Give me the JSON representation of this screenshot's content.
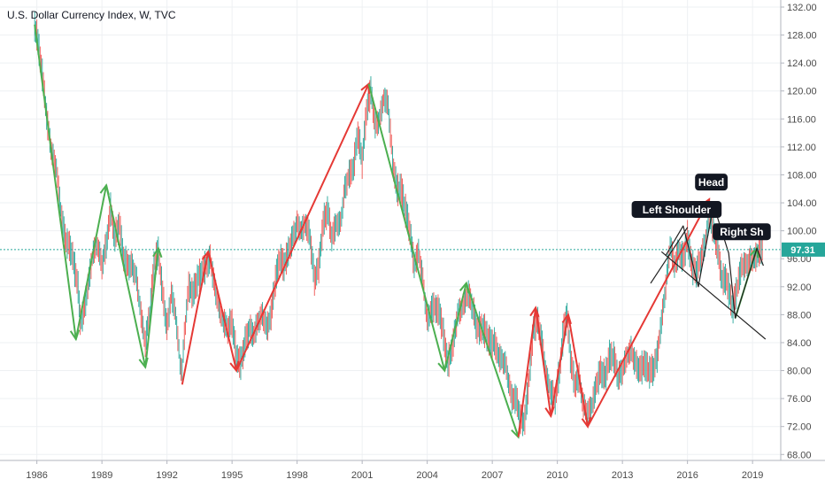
{
  "chart_data": {
    "type": "line",
    "title": "U.S. Dollar Currency Index, W, TVC",
    "x_tick_labels": [
      "1986",
      "1989",
      "1992",
      "1995",
      "1998",
      "2001",
      "2004",
      "2007",
      "2010",
      "2013",
      "2016",
      "2019"
    ],
    "y_tick_labels": [
      "68.00",
      "72.00",
      "76.00",
      "80.00",
      "84.00",
      "88.00",
      "92.00",
      "96.00",
      "100.00",
      "104.00",
      "108.00",
      "112.00",
      "116.00",
      "120.00",
      "124.00",
      "128.00",
      "132.00"
    ],
    "xlim": [
      1984.3,
      2019.6
    ],
    "ylim": [
      67.0,
      133.0
    ],
    "last_price": 97.31,
    "last_price_label": "97.31",
    "grid": true,
    "series": [
      {
        "values": [
          [
            1985.9,
            129.5
          ],
          [
            1986.1,
            126
          ],
          [
            1986.3,
            121
          ],
          [
            1986.5,
            115
          ],
          [
            1986.7,
            111
          ],
          [
            1986.9,
            109
          ],
          [
            1987.1,
            103
          ],
          [
            1987.3,
            99
          ],
          [
            1987.6,
            97
          ],
          [
            1987.9,
            92
          ],
          [
            1988.0,
            87
          ],
          [
            1988.2,
            89
          ],
          [
            1988.4,
            93
          ],
          [
            1988.6,
            97
          ],
          [
            1988.8,
            98
          ],
          [
            1989.0,
            95
          ],
          [
            1989.2,
            98
          ],
          [
            1989.4,
            103
          ],
          [
            1989.6,
            99
          ],
          [
            1989.8,
            101
          ],
          [
            1990.0,
            96
          ],
          [
            1990.2,
            95
          ],
          [
            1990.4,
            95
          ],
          [
            1990.6,
            93
          ],
          [
            1990.8,
            88
          ],
          [
            1991.0,
            84
          ],
          [
            1991.2,
            88
          ],
          [
            1991.4,
            95
          ],
          [
            1991.6,
            97
          ],
          [
            1991.8,
            91
          ],
          [
            1992.0,
            86
          ],
          [
            1992.2,
            91
          ],
          [
            1992.4,
            88
          ],
          [
            1992.6,
            81
          ],
          [
            1992.7,
            80
          ],
          [
            1992.8,
            85
          ],
          [
            1993.0,
            92
          ],
          [
            1993.2,
            91
          ],
          [
            1993.4,
            93
          ],
          [
            1993.6,
            94
          ],
          [
            1993.8,
            95
          ],
          [
            1994.0,
            96
          ],
          [
            1994.2,
            92
          ],
          [
            1994.4,
            89
          ],
          [
            1994.6,
            87
          ],
          [
            1994.8,
            86
          ],
          [
            1995.0,
            87
          ],
          [
            1995.2,
            82
          ],
          [
            1995.4,
            81
          ],
          [
            1995.6,
            84
          ],
          [
            1995.8,
            86
          ],
          [
            1996.0,
            85
          ],
          [
            1996.2,
            87
          ],
          [
            1996.4,
            88
          ],
          [
            1996.6,
            86
          ],
          [
            1996.8,
            88
          ],
          [
            1997.0,
            93
          ],
          [
            1997.2,
            96
          ],
          [
            1997.4,
            95
          ],
          [
            1997.6,
            97
          ],
          [
            1997.8,
            99
          ],
          [
            1998.0,
            101
          ],
          [
            1998.2,
            100
          ],
          [
            1998.4,
            101
          ],
          [
            1998.6,
            99
          ],
          [
            1998.8,
            93
          ],
          [
            1999.0,
            95
          ],
          [
            1999.2,
            101
          ],
          [
            1999.4,
            103
          ],
          [
            1999.6,
            99
          ],
          [
            1999.8,
            101
          ],
          [
            2000.0,
            101
          ],
          [
            2000.2,
            106
          ],
          [
            2000.4,
            108
          ],
          [
            2000.6,
            109
          ],
          [
            2000.8,
            114
          ],
          [
            2001.0,
            110
          ],
          [
            2001.2,
            117
          ],
          [
            2001.4,
            120
          ],
          [
            2001.6,
            115
          ],
          [
            2001.8,
            116
          ],
          [
            2002.0,
            119
          ],
          [
            2002.2,
            118
          ],
          [
            2002.4,
            110
          ],
          [
            2002.6,
            106
          ],
          [
            2002.8,
            106
          ],
          [
            2003.0,
            103
          ],
          [
            2003.2,
            100
          ],
          [
            2003.4,
            95
          ],
          [
            2003.6,
            97
          ],
          [
            2003.8,
            93
          ],
          [
            2004.0,
            87
          ],
          [
            2004.2,
            89
          ],
          [
            2004.4,
            89
          ],
          [
            2004.6,
            88
          ],
          [
            2004.8,
            84
          ],
          [
            2004.95,
            81
          ],
          [
            2005.2,
            84
          ],
          [
            2005.4,
            88
          ],
          [
            2005.6,
            89
          ],
          [
            2005.9,
            91
          ],
          [
            2006.1,
            89
          ],
          [
            2006.3,
            86
          ],
          [
            2006.6,
            86
          ],
          [
            2006.9,
            84
          ],
          [
            2007.1,
            84
          ],
          [
            2007.3,
            82
          ],
          [
            2007.6,
            81
          ],
          [
            2007.9,
            76
          ],
          [
            2008.1,
            76
          ],
          [
            2008.3,
            73
          ],
          [
            2008.5,
            73
          ],
          [
            2008.7,
            79
          ],
          [
            2008.9,
            86
          ],
          [
            2009.1,
            87
          ],
          [
            2009.3,
            84
          ],
          [
            2009.5,
            79
          ],
          [
            2009.7,
            77
          ],
          [
            2009.9,
            76
          ],
          [
            2010.1,
            80
          ],
          [
            2010.3,
            86
          ],
          [
            2010.45,
            88
          ],
          [
            2010.6,
            82
          ],
          [
            2010.8,
            78
          ],
          [
            2011.0,
            79
          ],
          [
            2011.2,
            75
          ],
          [
            2011.4,
            74
          ],
          [
            2011.6,
            75
          ],
          [
            2011.8,
            78
          ],
          [
            2012.0,
            80
          ],
          [
            2012.2,
            79
          ],
          [
            2012.4,
            82
          ],
          [
            2012.6,
            82
          ],
          [
            2012.8,
            79
          ],
          [
            2013.0,
            80
          ],
          [
            2013.2,
            82
          ],
          [
            2013.4,
            83
          ],
          [
            2013.6,
            81
          ],
          [
            2013.8,
            80
          ],
          [
            2014.0,
            81
          ],
          [
            2014.2,
            80
          ],
          [
            2014.4,
            80
          ],
          [
            2014.6,
            82
          ],
          [
            2014.8,
            87
          ],
          [
            2015.0,
            92
          ],
          [
            2015.2,
            98
          ],
          [
            2015.4,
            95
          ],
          [
            2015.6,
            97
          ],
          [
            2015.8,
            96
          ],
          [
            2016.0,
            99
          ],
          [
            2016.2,
            95
          ],
          [
            2016.4,
            94
          ],
          [
            2016.6,
            96
          ],
          [
            2016.8,
            98
          ],
          [
            2017.0,
            102
          ],
          [
            2017.2,
            100
          ],
          [
            2017.4,
            97
          ],
          [
            2017.6,
            93
          ],
          [
            2017.8,
            93
          ],
          [
            2018.0,
            90
          ],
          [
            2018.1,
            89
          ],
          [
            2018.3,
            92
          ],
          [
            2018.5,
            95
          ],
          [
            2018.7,
            95
          ],
          [
            2018.9,
            96
          ],
          [
            2019.1,
            96
          ],
          [
            2019.3,
            97
          ],
          [
            2019.5,
            97.31
          ]
        ]
      }
    ],
    "wave_lines": [
      {
        "color": "#4caf50",
        "points": [
          [
            1985.9,
            129.5
          ],
          [
            1987.8,
            84.5
          ],
          [
            1989.2,
            106.5
          ],
          [
            1991.0,
            80.5
          ],
          [
            1991.6,
            97.5
          ]
        ]
      },
      {
        "color": "#e53935",
        "points": [
          [
            1992.7,
            78
          ],
          [
            1993.9,
            97
          ]
        ]
      },
      {
        "color": "#e53935",
        "points": [
          [
            1993.9,
            97
          ],
          [
            1995.2,
            80
          ],
          [
            2001.3,
            121
          ]
        ]
      },
      {
        "color": "#4caf50",
        "points": [
          [
            2001.3,
            121
          ],
          [
            2004.8,
            80
          ],
          [
            2005.8,
            92.5
          ],
          [
            2008.2,
            70.5
          ]
        ]
      },
      {
        "color": "#e53935",
        "points": [
          [
            2008.2,
            70.5
          ],
          [
            2009.0,
            89
          ],
          [
            2009.7,
            73.5
          ],
          [
            2010.5,
            88
          ],
          [
            2011.4,
            72
          ],
          [
            2017.0,
            104.5
          ]
        ]
      },
      {
        "color": "#4caf50",
        "points": [
          [
            2018.2,
            87.5
          ],
          [
            2019.2,
            97.5
          ]
        ]
      },
      {
        "color": "#212121",
        "points": [
          [
            2015.0,
            96.5
          ],
          [
            2015.8,
            100.7
          ],
          [
            2016.5,
            92
          ],
          [
            2017.2,
            103.7
          ],
          [
            2017.9,
            96.8
          ],
          [
            2018.2,
            87.5
          ],
          [
            2019.2,
            97.5
          ],
          [
            2019.5,
            95
          ]
        ]
      },
      {
        "color": "#212121",
        "points": [
          [
            2014.3,
            92.5
          ],
          [
            2016.0,
            100.5
          ]
        ]
      },
      {
        "color": "#212121",
        "points": [
          [
            2014.8,
            97
          ],
          [
            2019.6,
            84.5
          ]
        ]
      }
    ],
    "annotations": [
      {
        "label": "Head",
        "x": 2017.1,
        "y": 106.9
      },
      {
        "label": "Left Shoulder",
        "x": 2015.5,
        "y": 103.0
      },
      {
        "label": "Right Sh",
        "x": 2018.5,
        "y": 99.8
      }
    ]
  }
}
